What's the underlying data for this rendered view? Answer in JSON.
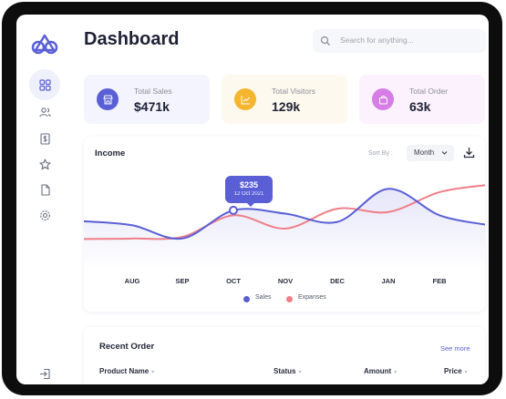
{
  "header": {
    "title": "Dashboard",
    "search_placeholder": "Search for anything..."
  },
  "sidebar": {
    "items": [
      {
        "icon": "grid-icon",
        "active": true
      },
      {
        "icon": "users-icon",
        "active": false
      },
      {
        "icon": "dollar-doc-icon",
        "active": false
      },
      {
        "icon": "star-icon",
        "active": false
      },
      {
        "icon": "file-icon",
        "active": false
      },
      {
        "icon": "gear-icon",
        "active": false
      }
    ],
    "bottom_icon": "logout-icon"
  },
  "stats": [
    {
      "label": "Total Sales",
      "value": "$471k",
      "icon": "store-icon",
      "color": "#5a5fd6",
      "bg": "#f3f4fd"
    },
    {
      "label": "Total Visitors",
      "value": "129k",
      "icon": "chart-icon",
      "color": "#f5b52e",
      "bg": "#fef9ef"
    },
    {
      "label": "Total Order",
      "value": "63k",
      "icon": "bag-icon",
      "color": "#d77ee6",
      "bg": "#fbf2fd"
    }
  ],
  "income": {
    "title": "Income",
    "sort_label": "Sort By :",
    "sort_value": "Month",
    "tooltip_value": "$235",
    "tooltip_date": "12 Oct 2021"
  },
  "chart_data": {
    "type": "line",
    "categories": [
      "AUG",
      "SEP",
      "OCT",
      "NOV",
      "DEC",
      "JAN",
      "FEB"
    ],
    "series": [
      {
        "name": "Sales",
        "color": "#5a5fd6",
        "values": [
          190,
          150,
          235,
          225,
          200,
          300,
          220
        ]
      },
      {
        "name": "Expanses",
        "color": "#ef7f88",
        "values": [
          150,
          155,
          220,
          180,
          240,
          230,
          290
        ]
      }
    ],
    "legend_position": "bottom",
    "grid": false
  },
  "recent": {
    "title": "Recent Order",
    "see_more": "See more",
    "columns": [
      "Product Name",
      "Status",
      "Amount",
      "Price"
    ]
  }
}
